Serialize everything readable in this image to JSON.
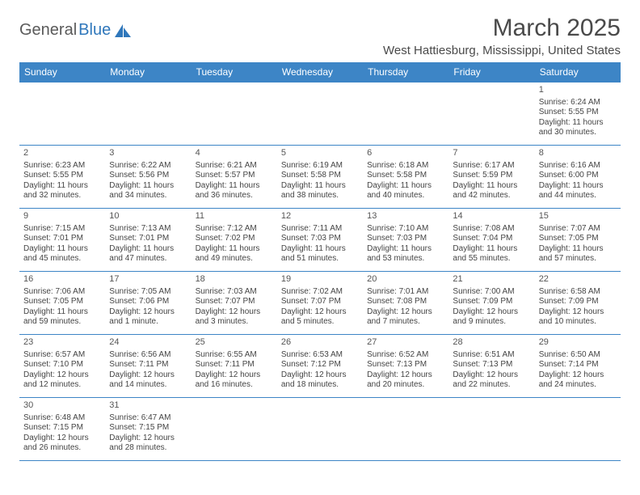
{
  "logo": {
    "text1": "General",
    "text2": "Blue"
  },
  "title": "March 2025",
  "location": "West Hattiesburg, Mississippi, United States",
  "colors": {
    "header_bg": "#3d85c6",
    "header_fg": "#ffffff",
    "border": "#3d85c6",
    "text": "#444444",
    "title": "#4a4a4a",
    "logo_gray": "#5a5a5a",
    "logo_blue": "#2f77bb"
  },
  "weekdays": [
    "Sunday",
    "Monday",
    "Tuesday",
    "Wednesday",
    "Thursday",
    "Friday",
    "Saturday"
  ],
  "weeks": [
    [
      null,
      null,
      null,
      null,
      null,
      null,
      {
        "d": "1",
        "sr": "6:24 AM",
        "ss": "5:55 PM",
        "dl": "11 hours and 30 minutes."
      }
    ],
    [
      {
        "d": "2",
        "sr": "6:23 AM",
        "ss": "5:55 PM",
        "dl": "11 hours and 32 minutes."
      },
      {
        "d": "3",
        "sr": "6:22 AM",
        "ss": "5:56 PM",
        "dl": "11 hours and 34 minutes."
      },
      {
        "d": "4",
        "sr": "6:21 AM",
        "ss": "5:57 PM",
        "dl": "11 hours and 36 minutes."
      },
      {
        "d": "5",
        "sr": "6:19 AM",
        "ss": "5:58 PM",
        "dl": "11 hours and 38 minutes."
      },
      {
        "d": "6",
        "sr": "6:18 AM",
        "ss": "5:58 PM",
        "dl": "11 hours and 40 minutes."
      },
      {
        "d": "7",
        "sr": "6:17 AM",
        "ss": "5:59 PM",
        "dl": "11 hours and 42 minutes."
      },
      {
        "d": "8",
        "sr": "6:16 AM",
        "ss": "6:00 PM",
        "dl": "11 hours and 44 minutes."
      }
    ],
    [
      {
        "d": "9",
        "sr": "7:15 AM",
        "ss": "7:01 PM",
        "dl": "11 hours and 45 minutes."
      },
      {
        "d": "10",
        "sr": "7:13 AM",
        "ss": "7:01 PM",
        "dl": "11 hours and 47 minutes."
      },
      {
        "d": "11",
        "sr": "7:12 AM",
        "ss": "7:02 PM",
        "dl": "11 hours and 49 minutes."
      },
      {
        "d": "12",
        "sr": "7:11 AM",
        "ss": "7:03 PM",
        "dl": "11 hours and 51 minutes."
      },
      {
        "d": "13",
        "sr": "7:10 AM",
        "ss": "7:03 PM",
        "dl": "11 hours and 53 minutes."
      },
      {
        "d": "14",
        "sr": "7:08 AM",
        "ss": "7:04 PM",
        "dl": "11 hours and 55 minutes."
      },
      {
        "d": "15",
        "sr": "7:07 AM",
        "ss": "7:05 PM",
        "dl": "11 hours and 57 minutes."
      }
    ],
    [
      {
        "d": "16",
        "sr": "7:06 AM",
        "ss": "7:05 PM",
        "dl": "11 hours and 59 minutes."
      },
      {
        "d": "17",
        "sr": "7:05 AM",
        "ss": "7:06 PM",
        "dl": "12 hours and 1 minute."
      },
      {
        "d": "18",
        "sr": "7:03 AM",
        "ss": "7:07 PM",
        "dl": "12 hours and 3 minutes."
      },
      {
        "d": "19",
        "sr": "7:02 AM",
        "ss": "7:07 PM",
        "dl": "12 hours and 5 minutes."
      },
      {
        "d": "20",
        "sr": "7:01 AM",
        "ss": "7:08 PM",
        "dl": "12 hours and 7 minutes."
      },
      {
        "d": "21",
        "sr": "7:00 AM",
        "ss": "7:09 PM",
        "dl": "12 hours and 9 minutes."
      },
      {
        "d": "22",
        "sr": "6:58 AM",
        "ss": "7:09 PM",
        "dl": "12 hours and 10 minutes."
      }
    ],
    [
      {
        "d": "23",
        "sr": "6:57 AM",
        "ss": "7:10 PM",
        "dl": "12 hours and 12 minutes."
      },
      {
        "d": "24",
        "sr": "6:56 AM",
        "ss": "7:11 PM",
        "dl": "12 hours and 14 minutes."
      },
      {
        "d": "25",
        "sr": "6:55 AM",
        "ss": "7:11 PM",
        "dl": "12 hours and 16 minutes."
      },
      {
        "d": "26",
        "sr": "6:53 AM",
        "ss": "7:12 PM",
        "dl": "12 hours and 18 minutes."
      },
      {
        "d": "27",
        "sr": "6:52 AM",
        "ss": "7:13 PM",
        "dl": "12 hours and 20 minutes."
      },
      {
        "d": "28",
        "sr": "6:51 AM",
        "ss": "7:13 PM",
        "dl": "12 hours and 22 minutes."
      },
      {
        "d": "29",
        "sr": "6:50 AM",
        "ss": "7:14 PM",
        "dl": "12 hours and 24 minutes."
      }
    ],
    [
      {
        "d": "30",
        "sr": "6:48 AM",
        "ss": "7:15 PM",
        "dl": "12 hours and 26 minutes."
      },
      {
        "d": "31",
        "sr": "6:47 AM",
        "ss": "7:15 PM",
        "dl": "12 hours and 28 minutes."
      },
      null,
      null,
      null,
      null,
      null
    ]
  ],
  "labels": {
    "sunrise": "Sunrise:",
    "sunset": "Sunset:",
    "daylight": "Daylight:"
  }
}
